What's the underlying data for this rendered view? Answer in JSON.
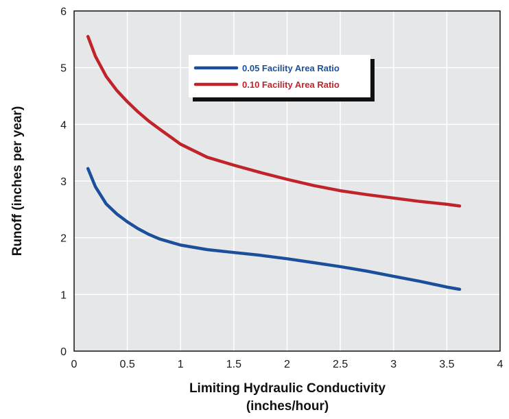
{
  "chart_data": {
    "type": "line",
    "title": "",
    "xlabel_lines": [
      "Limiting Hydraulic Conductivity",
      "(inches/hour)"
    ],
    "ylabel": "Runoff (inches per year)",
    "xlim": [
      0,
      4
    ],
    "ylim": [
      0,
      6
    ],
    "x_ticks": [
      0,
      0.5,
      1,
      1.5,
      2,
      2.5,
      3,
      3.5,
      4
    ],
    "x_tick_labels": [
      "0",
      "0.5",
      "1",
      "1.5",
      "2",
      "2.5",
      "3",
      "3.5",
      "4"
    ],
    "y_ticks": [
      0,
      1,
      2,
      3,
      4,
      5,
      6
    ],
    "y_tick_labels": [
      "0",
      "1",
      "2",
      "3",
      "4",
      "5",
      "6"
    ],
    "grid": true,
    "legend_position": "top-center",
    "series": [
      {
        "name": "0.05 Facility Area Ratio",
        "color": "#1b4f9c",
        "x": [
          0.13,
          0.2,
          0.3,
          0.4,
          0.5,
          0.6,
          0.7,
          0.8,
          1.0,
          1.25,
          1.5,
          1.75,
          2.0,
          2.25,
          2.5,
          2.75,
          3.0,
          3.25,
          3.5,
          3.62
        ],
        "y": [
          3.22,
          2.9,
          2.6,
          2.42,
          2.28,
          2.16,
          2.06,
          1.98,
          1.87,
          1.79,
          1.74,
          1.69,
          1.63,
          1.56,
          1.49,
          1.41,
          1.32,
          1.23,
          1.13,
          1.09
        ]
      },
      {
        "name": "0.10 Facility Area Ratio",
        "color": "#c1232b",
        "x": [
          0.13,
          0.2,
          0.3,
          0.4,
          0.5,
          0.6,
          0.7,
          0.8,
          1.0,
          1.25,
          1.5,
          1.75,
          2.0,
          2.25,
          2.5,
          2.75,
          3.0,
          3.25,
          3.5,
          3.62
        ],
        "y": [
          5.55,
          5.2,
          4.85,
          4.6,
          4.4,
          4.22,
          4.06,
          3.92,
          3.65,
          3.42,
          3.28,
          3.15,
          3.03,
          2.92,
          2.83,
          2.76,
          2.7,
          2.64,
          2.59,
          2.56
        ]
      }
    ]
  }
}
